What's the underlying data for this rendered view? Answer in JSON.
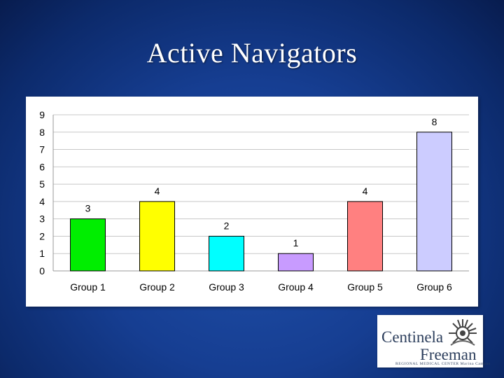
{
  "slide": {
    "title": "Active Navigators"
  },
  "chart_data": {
    "type": "bar",
    "title": "",
    "xlabel": "",
    "ylabel": "",
    "categories": [
      "Group 1",
      "Group 2",
      "Group 3",
      "Group 4",
      "Group 5",
      "Group 6"
    ],
    "values": [
      3,
      4,
      2,
      1,
      4,
      8
    ],
    "colors": [
      "#00ee00",
      "#ffff00",
      "#00ffff",
      "#c89bff",
      "#ff8080",
      "#ccccff"
    ],
    "ylim": [
      0,
      9
    ],
    "yticks": [
      0,
      1,
      2,
      3,
      4,
      5,
      6,
      7,
      8,
      9
    ],
    "data_labels": true,
    "grid": true,
    "legend": "none"
  },
  "logo": {
    "line1": "Centinela",
    "line2": "Freeman",
    "subtitle": "REGIONAL MEDICAL CENTER Marina Campus",
    "icon": "sun-burst-emblem-icon"
  }
}
